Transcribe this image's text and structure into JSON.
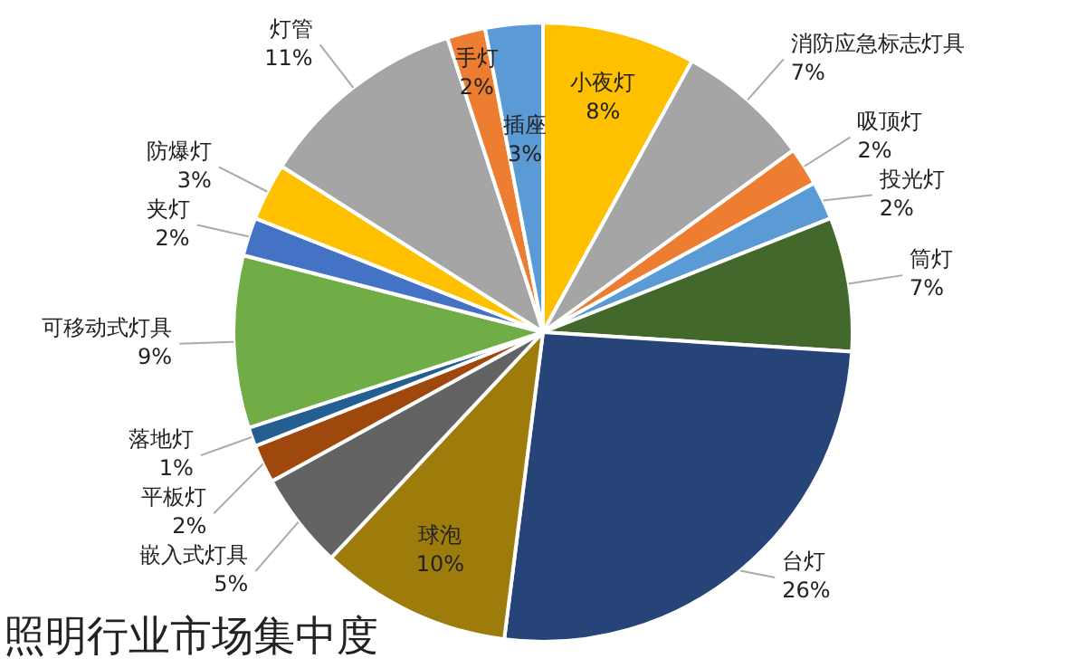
{
  "chart_data": {
    "type": "pie",
    "title": "照明行业市场集中度",
    "categories": [
      "小夜灯",
      "消防应急标志灯具",
      "吸顶灯",
      "投光灯",
      "筒灯",
      "台灯",
      "球泡",
      "嵌入式灯具",
      "平板灯",
      "落地灯",
      "可移动式灯具",
      "夹灯",
      "防爆灯",
      "灯管",
      "手灯",
      "插座"
    ],
    "values": [
      8,
      7,
      2,
      2,
      7,
      26,
      10,
      5,
      2,
      1,
      9,
      2,
      3,
      11,
      2,
      3
    ],
    "value_labels": [
      "8%",
      "7%",
      "2%",
      "2%",
      "7%",
      "26%",
      "10%",
      "5%",
      "2%",
      "1%",
      "9%",
      "2%",
      "3%",
      "11%",
      "2%",
      "3%"
    ],
    "colors": [
      "#ffc000",
      "#a5a5a5",
      "#ed7d31",
      "#5b9bd5",
      "#43682b",
      "#264478",
      "#9e7c0c",
      "#636363",
      "#9e480e",
      "#255e91",
      "#70ad47",
      "#4472c4",
      "#ffc000",
      "#a5a5a5",
      "#ed7d31",
      "#5b9bd5"
    ],
    "legend": false
  }
}
